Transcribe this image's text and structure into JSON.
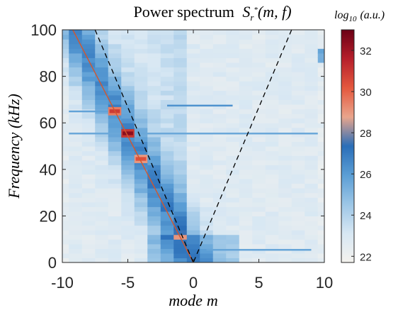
{
  "chart_data": {
    "type": "heatmap",
    "title": "Power spectrum",
    "title_math": {
      "base": "S",
      "sub": "r",
      "sup": "*",
      "args": "(m, f)"
    },
    "xlabel": {
      "word": "mode",
      "var": "m"
    },
    "ylabel": "Frequency (kHz)",
    "xlim": [
      -10,
      10
    ],
    "ylim": [
      0,
      100
    ],
    "x_ticks": [
      -10,
      -5,
      0,
      5,
      10
    ],
    "y_ticks": [
      0,
      20,
      40,
      60,
      80,
      100
    ],
    "colorbar": {
      "label": "log10 (a.u.)",
      "label_parts": {
        "log": "log",
        "sub": "10",
        "unit": "(a.u.)"
      },
      "range": [
        21.7,
        33
      ],
      "ticks": [
        22,
        24,
        26,
        28,
        30,
        32
      ],
      "colormap": [
        "#f4f2ee",
        "#d7e7f3",
        "#9cc6e6",
        "#5b9ed5",
        "#2a6eb8",
        "#e9a58c",
        "#e4583e",
        "#b61f2b",
        "#6b0015"
      ]
    },
    "modes": [
      -10,
      -9,
      -8,
      -7,
      -6,
      -5,
      -4,
      -3,
      -2,
      -1,
      0,
      1,
      2,
      3,
      4,
      5,
      6,
      7,
      8,
      9,
      10
    ],
    "hotspots": [
      {
        "m": -6,
        "f": 65,
        "log_power": 29.5
      },
      {
        "m": -5,
        "f": 55.5,
        "log_power": 31
      },
      {
        "m": -4,
        "f": 44.5,
        "log_power": 29
      }
    ],
    "dispersion_line": {
      "color": "#d2572e",
      "points": [
        [
          -9.2,
          100
        ],
        [
          0,
          0
        ]
      ]
    },
    "cone_lines": {
      "color": "#000000",
      "style": "dashed",
      "left": [
        [
          -7.5,
          100
        ],
        [
          0,
          0
        ]
      ],
      "right": [
        [
          7.5,
          100
        ],
        [
          0,
          0
        ]
      ]
    }
  }
}
